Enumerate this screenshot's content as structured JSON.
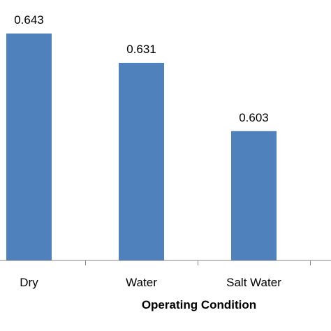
{
  "chart_data": {
    "type": "bar",
    "categories": [
      "Dry",
      "Water",
      "Salt Water"
    ],
    "values": [
      0.643,
      0.631,
      0.603
    ],
    "data_labels": [
      "0.643",
      "0.631",
      "0.603"
    ],
    "xlabel": "Operating Condition",
    "ylabel": "",
    "title": "",
    "ylim": [
      0.55,
      0.65
    ],
    "bar_color": "#4F81BD",
    "axis_color": "#868686",
    "grid": false,
    "legend": "none"
  }
}
